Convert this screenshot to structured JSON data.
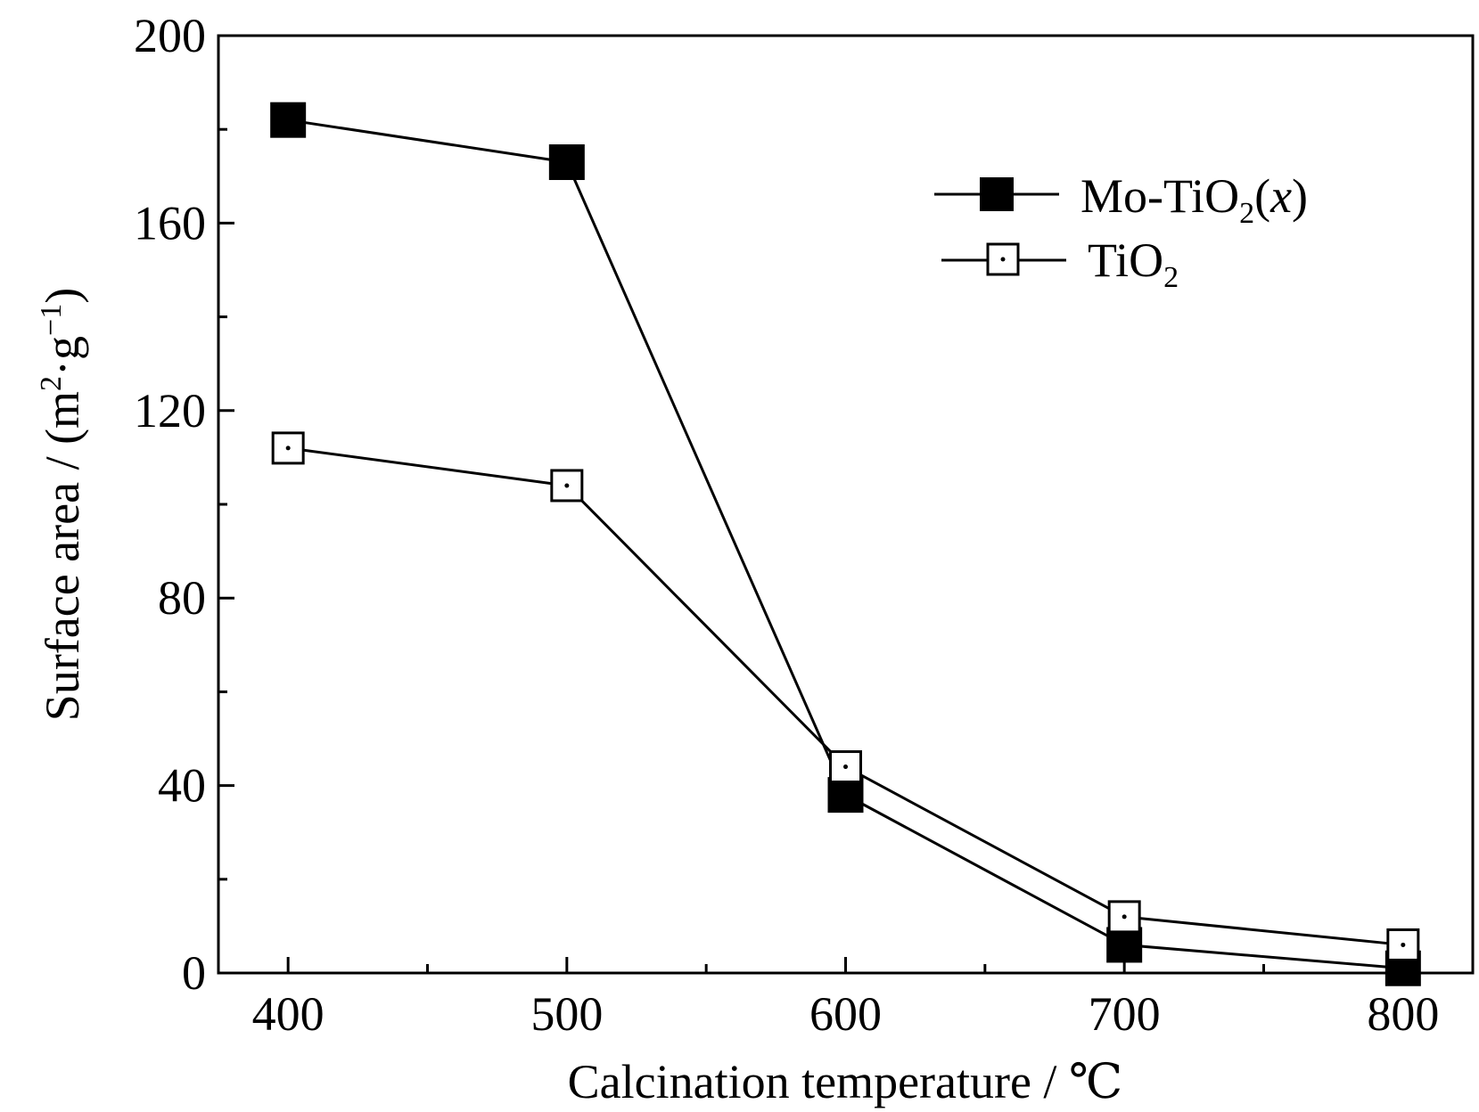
{
  "chart_data": {
    "type": "line",
    "x": [
      400,
      500,
      600,
      700,
      800
    ],
    "series": [
      {
        "name": "Mo-TiO2(x)",
        "values": [
          182,
          173,
          38,
          6,
          1
        ],
        "marker": "filled-square",
        "color": "#000000"
      },
      {
        "name": "TiO2",
        "values": [
          112,
          104,
          44,
          12,
          6
        ],
        "marker": "open-square-dot",
        "color": "#000000"
      }
    ],
    "xlabel": "Calcination temperature / ℃",
    "ylabel": "Surface area / (m²·g⁻¹)",
    "xlim": [
      375,
      825
    ],
    "ylim": [
      0,
      200
    ],
    "x_major_ticks": [
      400,
      500,
      600,
      700,
      800
    ],
    "x_minor_ticks": [
      450,
      550,
      650,
      750
    ],
    "y_major_ticks": [
      0,
      40,
      80,
      120,
      160,
      200
    ],
    "y_minor_ticks": [
      20,
      60,
      100,
      140,
      180
    ],
    "x_tick_labels": [
      "400",
      "500",
      "600",
      "700",
      "800"
    ],
    "y_tick_labels": [
      "0",
      "40",
      "80",
      "120",
      "160",
      "200"
    ],
    "grid": false,
    "legend_position": "top-right",
    "legend": {
      "mo_main": "Mo-TiO",
      "mo_sub": "2",
      "mo_open": "(",
      "mo_var": "x",
      "mo_close": ")",
      "ti_main": "TiO",
      "ti_sub": "2"
    },
    "ylabel_parts": {
      "prefix": "Surface area / (m",
      "sup1": "2",
      "mid": "·g",
      "sup2": "−1",
      "suffix": ")"
    }
  }
}
